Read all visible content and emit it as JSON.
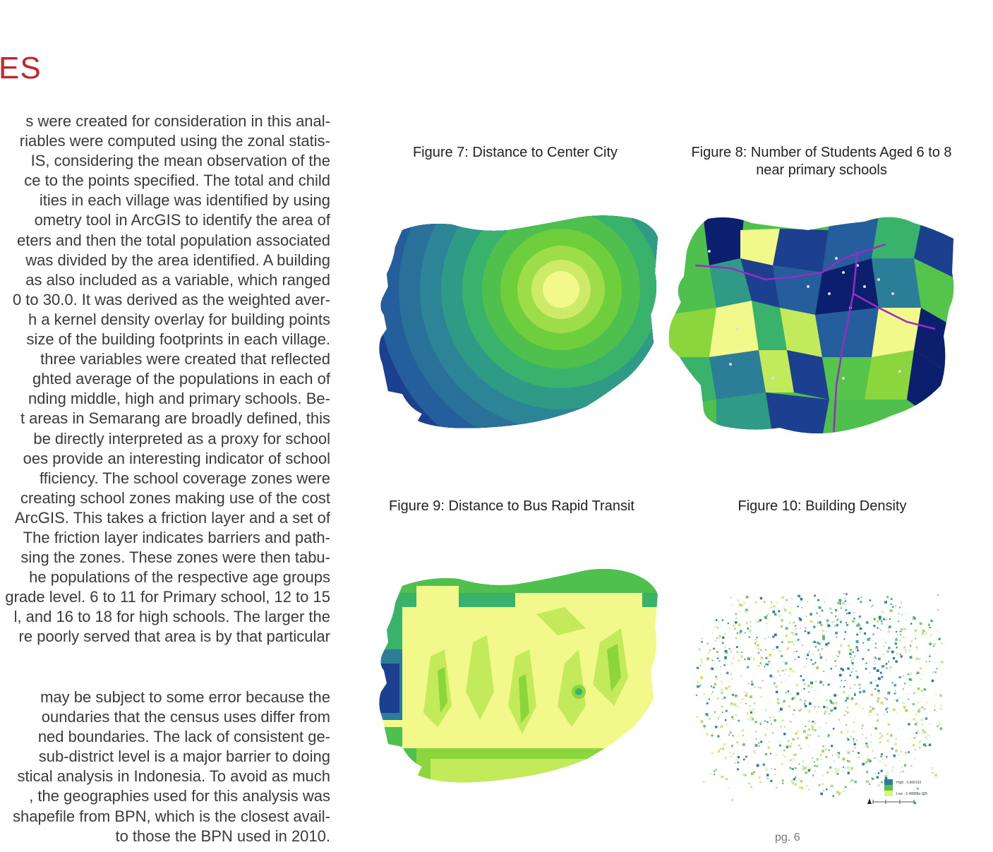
{
  "heading": "ES",
  "paragraph1": [
    "s were created for consideration in this anal-",
    "riables were computed using the zonal statis-",
    "IS, considering the mean observation of the",
    "ce to the points specified. The total and child",
    "ities in each village was identified by using",
    "ometry tool in ArcGIS to identify the area of",
    "eters and then the total population associated",
    "was divided by the area identified. A building",
    "as also included as a variable, which ranged",
    "0 to 30.0. It was derived as the weighted aver-",
    "h a kernel density overlay for building points",
    "size of the building footprints in each village.",
    "three variables were created that reflected",
    "ghted average of the populations in each of",
    "nding middle, high and primary schools. Be-",
    "t areas in Semarang are broadly defined, this",
    "be directly interpreted as a proxy for school",
    "oes provide an interesting indicator of school",
    "fficiency.  The school coverage zones were",
    "creating school zones making use of the cost",
    "ArcGIS. This takes a friction layer and a set of",
    "The friction layer indicates barriers and path-",
    "sing the zones. These zones were then tabu-",
    "he populations of the respective age groups",
    "grade level. 6 to 11 for Primary school, 12 to 15",
    "l, and 16 to 18 for high schools. The larger the",
    "re poorly served that area is by that particular"
  ],
  "paragraph2": [
    "may be subject to some error because the",
    "oundaries that the census uses differ from",
    "ned boundaries. The lack of consistent ge-",
    "sub-district level is a major barrier to doing",
    "stical analysis in Indonesia. To avoid as much",
    ", the geographies used for this analysis was",
    "shapefile from BPN, which is the closest avail-",
    "to those the BPN used in 2010."
  ],
  "figures": {
    "fig7": {
      "caption": "Figure 7:  Distance to Center City"
    },
    "fig8": {
      "caption_line1": "Figure 8: Number of Students Aged 6 to 8",
      "caption_line2": "near primary schools"
    },
    "fig9": {
      "caption": "Figure 9:  Distance to Bus Rapid Transit"
    },
    "fig10": {
      "caption": "Figure 10:  Building Density",
      "legend_high": "High : 0.868193",
      "legend_low": "Low : 6.48888e-005"
    }
  },
  "colors": {
    "heading": "#c0272d",
    "ramp": [
      "#0b1f6e",
      "#1d3f8f",
      "#255e9c",
      "#2c7e98",
      "#2f9a86",
      "#39b26b",
      "#55c44b",
      "#8ad63c",
      "#c3ea5a",
      "#f2f88a"
    ]
  },
  "page_number": "pg. 6"
}
